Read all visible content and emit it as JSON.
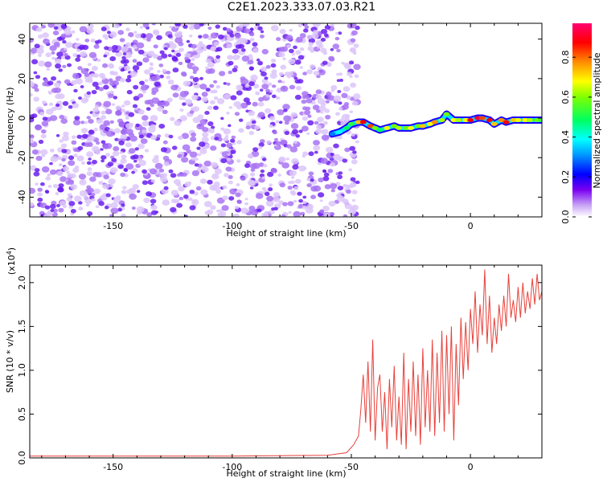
{
  "title": "C2E1.2023.333.07.03.R21",
  "chart_data": [
    {
      "type": "heatmap",
      "xlabel": "Height of straight line (km)",
      "ylabel": "Frequency (Hz)",
      "xlim": [
        -185,
        30
      ],
      "ylim": [
        -50,
        48
      ],
      "x_ticks": [
        -150,
        -100,
        -50,
        0
      ],
      "x_tick_labels": [
        "-150",
        "-100",
        "-50",
        "0"
      ],
      "y_ticks": [
        -40,
        -20,
        0,
        20,
        40
      ],
      "y_tick_labels": [
        "-40",
        "-20",
        "0",
        "20",
        "40"
      ],
      "noise_region_x": [
        -185,
        -52
      ],
      "signal_trace": {
        "x": [
          -58,
          -55,
          -52,
          -50,
          -47,
          -45,
          -42,
          -40,
          -38,
          -35,
          -32,
          -30,
          -27,
          -25,
          -22,
          -20,
          -17,
          -15,
          -12,
          -10,
          -7,
          -5,
          -2,
          0,
          3,
          5,
          8,
          10,
          13,
          15,
          18,
          20,
          23,
          25,
          28,
          30
        ],
        "y": [
          -8,
          -7,
          -5,
          -3,
          -2,
          -2,
          -4,
          -5,
          -6,
          -5,
          -4,
          -5,
          -5,
          -5,
          -4,
          -4,
          -3,
          -2,
          -1,
          2,
          -1,
          -1,
          -1,
          -1,
          0,
          0,
          -1,
          -3,
          -1,
          -2,
          -1,
          -1,
          -1,
          -1,
          -1,
          -1
        ],
        "amplitude": [
          0.3,
          0.4,
          0.5,
          0.55,
          0.75,
          0.9,
          0.85,
          0.6,
          0.5,
          0.7,
          0.6,
          0.65,
          0.6,
          0.7,
          0.6,
          0.75,
          0.7,
          0.8,
          0.65,
          0.6,
          0.7,
          0.65,
          0.7,
          0.9,
          0.95,
          0.85,
          0.9,
          0.75,
          0.8,
          0.9,
          0.75,
          0.7,
          0.7,
          0.65,
          0.6,
          0.55
        ]
      },
      "colorbar": {
        "label": "Normalized spectral amplitude",
        "range": [
          0.0,
          0.97
        ],
        "ticks": [
          0.0,
          0.2,
          0.4,
          0.6,
          0.8
        ],
        "tick_labels": [
          "0.0",
          "0.2",
          "0.4",
          "0.6",
          "0.8"
        ]
      }
    },
    {
      "type": "line",
      "xlabel": "Height of straight line (km)",
      "ylabel": "SNR (10 * v/v)",
      "y_multiplier": "(x10",
      "y_multiplier_exp": "4",
      "xlim": [
        -185,
        30
      ],
      "ylim": [
        0,
        2.2
      ],
      "x_ticks": [
        -150,
        -100,
        -50,
        0
      ],
      "x_tick_labels": [
        "-150",
        "-100",
        "-50",
        "0"
      ],
      "y_ticks": [
        0.0,
        0.5,
        1.0,
        1.5,
        2.0
      ],
      "y_tick_labels": [
        "0.0",
        "0.5",
        "1.0",
        "1.5",
        "2.0"
      ],
      "series": [
        {
          "color": "#e8403a",
          "x": [
            -185,
            -150,
            -100,
            -60,
            -52,
            -49,
            -47,
            -46,
            -45,
            -44,
            -43,
            -42,
            -41,
            -40,
            -39,
            -38,
            -37,
            -36,
            -35,
            -34,
            -33,
            -32,
            -31,
            -30,
            -29,
            -28,
            -27,
            -26,
            -25,
            -24,
            -23,
            -22,
            -21,
            -20,
            -19,
            -18,
            -17,
            -16,
            -15,
            -14,
            -13,
            -12,
            -11,
            -10,
            -9,
            -8,
            -7,
            -6,
            -5,
            -4,
            -3,
            -2,
            -1,
            0,
            1,
            2,
            3,
            4,
            5,
            6,
            7,
            8,
            9,
            10,
            11,
            12,
            13,
            14,
            15,
            16,
            17,
            18,
            19,
            20,
            21,
            22,
            23,
            24,
            25,
            26,
            27,
            28,
            29,
            30
          ],
          "y": [
            0.02,
            0.02,
            0.02,
            0.03,
            0.06,
            0.15,
            0.25,
            0.55,
            0.95,
            0.4,
            1.1,
            0.3,
            1.35,
            0.2,
            0.8,
            0.95,
            0.3,
            0.75,
            0.1,
            0.9,
            0.35,
            1.05,
            0.2,
            0.7,
            0.15,
            1.2,
            0.1,
            0.9,
            0.3,
            1.1,
            0.25,
            0.95,
            0.15,
            1.25,
            0.35,
            1.0,
            0.3,
            1.35,
            0.25,
            1.2,
            0.4,
            1.45,
            0.3,
            1.4,
            0.5,
            1.5,
            0.2,
            1.3,
            0.6,
            1.6,
            0.9,
            1.55,
            1.0,
            1.7,
            1.3,
            1.9,
            1.2,
            1.75,
            1.4,
            2.15,
            1.3,
            1.85,
            1.2,
            1.6,
            1.3,
            1.75,
            1.45,
            1.85,
            1.5,
            2.1,
            1.6,
            1.8,
            1.55,
            1.95,
            1.6,
            2.0,
            1.65,
            1.9,
            1.7,
            2.05,
            1.75,
            2.1,
            1.8,
            1.9
          ]
        }
      ]
    }
  ]
}
